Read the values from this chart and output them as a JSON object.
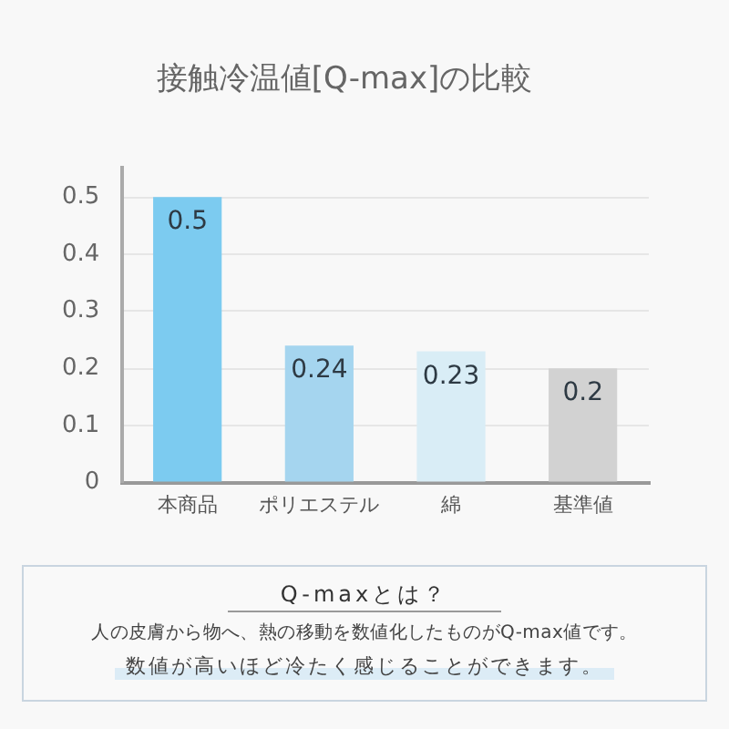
{
  "chart_data": {
    "type": "bar",
    "title": "接触冷温値[Q-max]の比較",
    "categories": [
      "本商品",
      "ポリエステル",
      "綿",
      "基準値"
    ],
    "values": [
      0.5,
      0.24,
      0.23,
      0.2
    ],
    "colors": [
      "#7ccbf0",
      "#a5d5ef",
      "#d9edf6",
      "#d2d2d2"
    ],
    "data_labels": true,
    "ylim": [
      0,
      0.55
    ],
    "yticks": [
      0,
      0.1,
      0.2,
      0.3,
      0.4,
      0.5
    ],
    "grid": "y",
    "annotations": [
      "Q-maxとは？",
      "人の皮膚から物へ、熱の移動を数値化したものがQ-max値です。",
      "数値が高いほど冷たく感じることができます。"
    ]
  }
}
